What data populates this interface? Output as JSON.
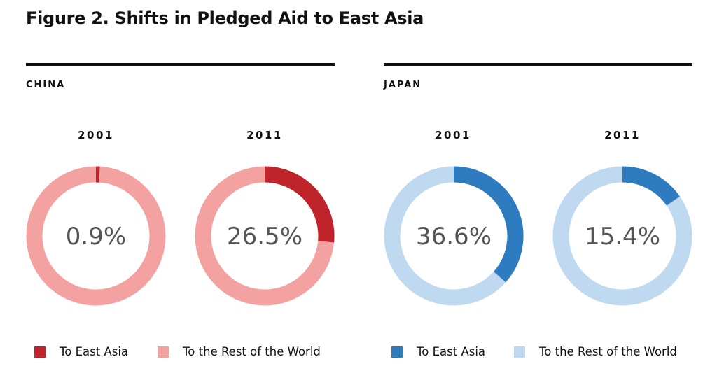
{
  "chart_data": [
    {
      "type": "pie",
      "donut": true,
      "title": "CHINA",
      "categories": [
        "To East Asia",
        "To the Rest of the World"
      ],
      "colors": {
        "east_asia": "#c0242b",
        "rest_of_world": "#f4a1a1"
      },
      "charts": [
        {
          "year": "2001",
          "label": "0.9%",
          "values": [
            0.9,
            99.1
          ]
        },
        {
          "year": "2011",
          "label": "26.5%",
          "values": [
            26.5,
            73.5
          ]
        }
      ]
    },
    {
      "type": "pie",
      "donut": true,
      "title": "JAPAN",
      "categories": [
        "To East Asia",
        "To the Rest of the World"
      ],
      "colors": {
        "east_asia": "#2f7bbf",
        "rest_of_world": "#bfd9f0"
      },
      "charts": [
        {
          "year": "2001",
          "label": "36.6%",
          "values": [
            36.6,
            63.4
          ]
        },
        {
          "year": "2011",
          "label": "15.4%",
          "values": [
            15.4,
            84.6
          ]
        }
      ]
    }
  ],
  "figure": {
    "title": "Figure 2.  Shifts in Pledged Aid to East Asia"
  },
  "legend": {
    "east_asia": "To East Asia",
    "rest_of_world": "To the Rest of the World"
  }
}
